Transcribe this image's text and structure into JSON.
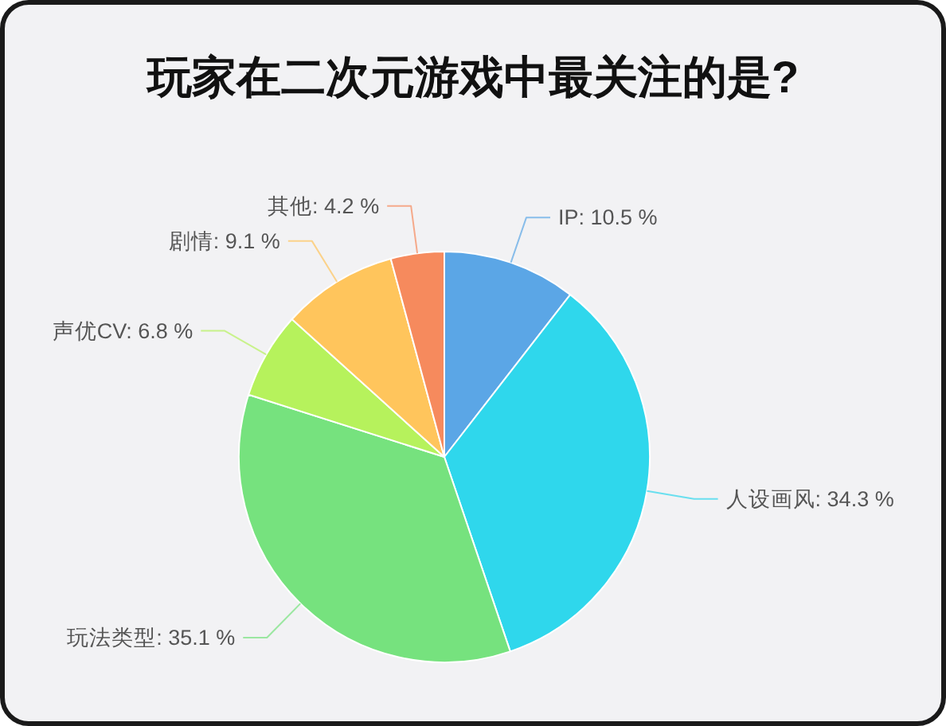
{
  "chart_data": {
    "type": "pie",
    "title": "玩家在二次元游戏中最关注的是?",
    "categories": [
      "IP",
      "人设画风",
      "玩法类型",
      "声优CV",
      "剧情",
      "其他"
    ],
    "values": [
      10.5,
      34.3,
      35.1,
      6.8,
      9.1,
      4.2
    ],
    "colors": [
      "#5ba6e6",
      "#2fd7ec",
      "#76e27e",
      "#b6f25c",
      "#ffc55c",
      "#f68a5d"
    ],
    "value_labels": [
      "10.5 %",
      "34.3 %",
      "35.1 %",
      "6.8 %",
      "9.1 %",
      "4.2 %"
    ]
  }
}
